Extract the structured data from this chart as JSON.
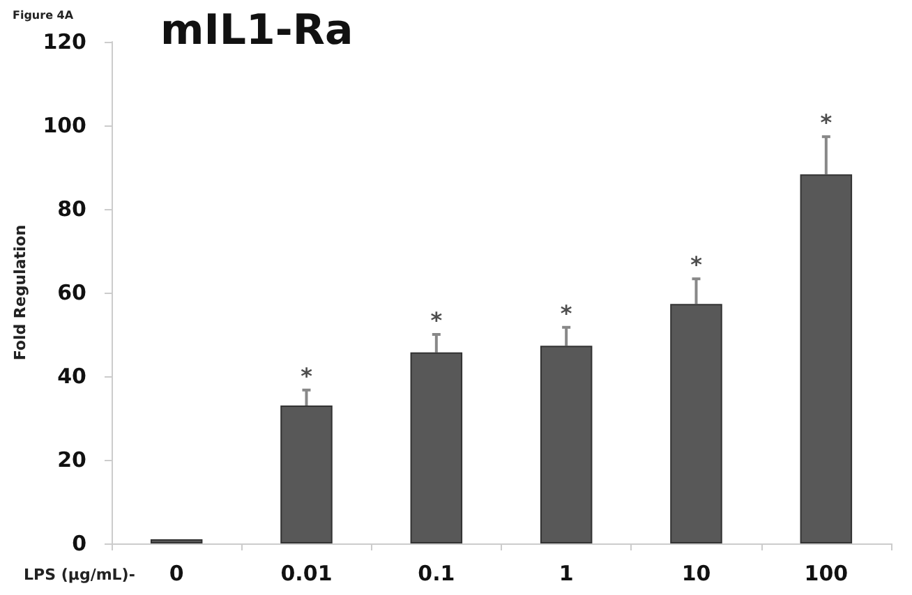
{
  "chart_data": {
    "type": "bar",
    "title": "mIL1-Ra",
    "ylabel": "Fold Regulation",
    "xlabel": "LPS (µg/mL)-",
    "categories": [
      "0",
      "0.01",
      "0.1",
      "1",
      "10",
      "100"
    ],
    "values": [
      1,
      33,
      45.7,
      47.3,
      57.3,
      88.3
    ],
    "errors": [
      null,
      [
        33,
        36.7
      ],
      [
        45.7,
        50
      ],
      [
        47.3,
        51.7
      ],
      [
        57.3,
        63.3
      ],
      [
        88.3,
        97.3
      ]
    ],
    "color": "#585858",
    "ylim": [
      0,
      120
    ],
    "yticks": [
      0,
      20,
      40,
      60,
      80,
      100,
      120
    ],
    "grid": false,
    "annotations": [
      "Figure 4A",
      {
        "text": "*",
        "x": "0.01",
        "y": 36.7
      },
      {
        "text": "*",
        "x": "0.1",
        "y": 50
      },
      {
        "text": "*",
        "x": "1",
        "y": 51.7
      },
      {
        "text": "*",
        "x": "10",
        "y": 63.3
      },
      {
        "text": "*",
        "x": "100",
        "y": 97.3
      }
    ]
  }
}
